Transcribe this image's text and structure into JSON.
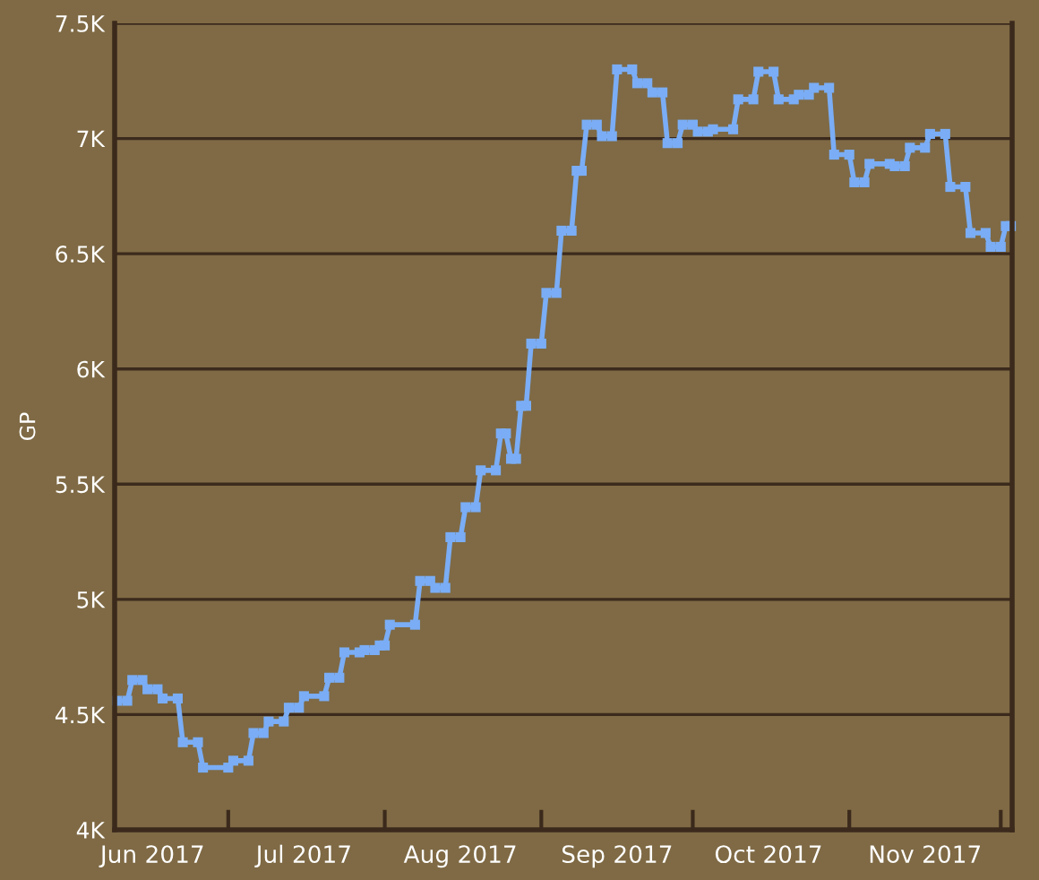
{
  "chart_data": {
    "type": "line",
    "ylabel": "GP",
    "x": [
      "2017-05-25",
      "2017-05-27",
      "2017-05-28",
      "2017-05-30",
      "2017-05-31",
      "2017-06-02",
      "2017-06-03",
      "2017-06-06",
      "2017-06-07",
      "2017-06-10",
      "2017-06-11",
      "2017-06-16",
      "2017-06-17",
      "2017-06-20",
      "2017-06-21",
      "2017-06-23",
      "2017-06-24",
      "2017-06-27",
      "2017-06-28",
      "2017-06-30",
      "2017-07-01",
      "2017-07-05",
      "2017-07-06",
      "2017-07-08",
      "2017-07-09",
      "2017-07-12",
      "2017-07-13",
      "2017-07-15",
      "2017-07-16",
      "2017-07-17",
      "2017-07-18",
      "2017-07-23",
      "2017-07-24",
      "2017-07-26",
      "2017-07-27",
      "2017-07-29",
      "2017-07-30",
      "2017-08-01",
      "2017-08-02",
      "2017-08-04",
      "2017-08-05",
      "2017-08-08",
      "2017-08-09",
      "2017-08-10",
      "2017-08-11",
      "2017-08-12",
      "2017-08-13",
      "2017-08-14",
      "2017-08-15",
      "2017-08-17",
      "2017-08-18",
      "2017-08-20",
      "2017-08-21",
      "2017-08-23",
      "2017-08-24",
      "2017-08-25",
      "2017-08-26",
      "2017-08-28",
      "2017-08-29",
      "2017-08-31",
      "2017-09-01",
      "2017-09-04",
      "2017-09-05",
      "2017-09-07",
      "2017-09-08",
      "2017-09-10",
      "2017-09-11",
      "2017-09-13",
      "2017-09-14",
      "2017-09-16",
      "2017-09-17",
      "2017-09-19",
      "2017-09-20",
      "2017-09-24",
      "2017-09-25",
      "2017-09-28",
      "2017-09-29",
      "2017-10-02",
      "2017-10-03",
      "2017-10-06",
      "2017-10-07",
      "2017-10-09",
      "2017-10-10",
      "2017-10-13",
      "2017-10-14",
      "2017-10-17",
      "2017-10-18",
      "2017-10-20",
      "2017-10-21",
      "2017-10-25",
      "2017-10-26",
      "2017-10-28",
      "2017-10-29",
      "2017-11-01",
      "2017-11-02",
      "2017-11-05",
      "2017-11-06",
      "2017-11-09",
      "2017-11-10",
      "2017-11-13",
      "2017-11-14",
      "2017-11-16",
      "2017-11-17",
      "2017-11-18"
    ],
    "series": [
      {
        "color": "#7aadf5",
        "values": [
          4560,
          4560,
          4650,
          4650,
          4610,
          4610,
          4570,
          4570,
          4380,
          4380,
          4270,
          4270,
          4300,
          4300,
          4420,
          4420,
          4470,
          4470,
          4530,
          4530,
          4580,
          4580,
          4660,
          4660,
          4770,
          4770,
          4780,
          4780,
          4800,
          4800,
          4890,
          4890,
          5080,
          5080,
          5050,
          5050,
          5270,
          5270,
          5400,
          5400,
          5560,
          5560,
          5720,
          5720,
          5610,
          5610,
          5840,
          5840,
          6110,
          6110,
          6330,
          6330,
          6600,
          6600,
          6860,
          6860,
          7060,
          7060,
          7010,
          7010,
          7300,
          7300,
          7240,
          7240,
          7200,
          7200,
          6980,
          6980,
          7060,
          7060,
          7030,
          7030,
          7040,
          7040,
          7170,
          7170,
          7290,
          7290,
          7170,
          7170,
          7190,
          7190,
          7220,
          7220,
          6930,
          6930,
          6810,
          6810,
          6890,
          6890,
          6880,
          6880,
          6960,
          6960,
          7020,
          7020,
          6790,
          6790,
          6590,
          6590,
          6530,
          6530,
          6620,
          6620
        ]
      }
    ],
    "xlim": [
      "2017-05-24T12:00",
      "2017-11-18T06:00"
    ],
    "xticks": [
      {
        "value": "2017-06-01",
        "label": "Jun 2017"
      },
      {
        "value": "2017-06-16",
        "label": null
      },
      {
        "value": "2017-07-01",
        "label": "Jul 2017"
      },
      {
        "value": "2017-07-17",
        "label": null
      },
      {
        "value": "2017-08-01",
        "label": "Aug 2017"
      },
      {
        "value": "2017-08-17",
        "label": null
      },
      {
        "value": "2017-09-01",
        "label": "Sep 2017"
      },
      {
        "value": "2017-09-16",
        "label": null
      },
      {
        "value": "2017-10-01",
        "label": "Oct 2017"
      },
      {
        "value": "2017-10-17",
        "label": null
      },
      {
        "value": "2017-11-01",
        "label": "Nov 2017"
      },
      {
        "value": "2017-11-16",
        "label": null
      }
    ],
    "ylim": [
      4000,
      7500
    ],
    "yticks": [
      {
        "value": 4000,
        "label": "4K"
      },
      {
        "value": 4500,
        "label": "4.5K"
      },
      {
        "value": 5000,
        "label": "5K"
      },
      {
        "value": 5500,
        "label": "5.5K"
      },
      {
        "value": 6000,
        "label": "6K"
      },
      {
        "value": 6500,
        "label": "6.5K"
      },
      {
        "value": 7000,
        "label": "7K"
      },
      {
        "value": 7500,
        "label": "7.5K"
      }
    ],
    "grid": "y",
    "marker": "square",
    "line_style": "solid",
    "legend": false
  }
}
